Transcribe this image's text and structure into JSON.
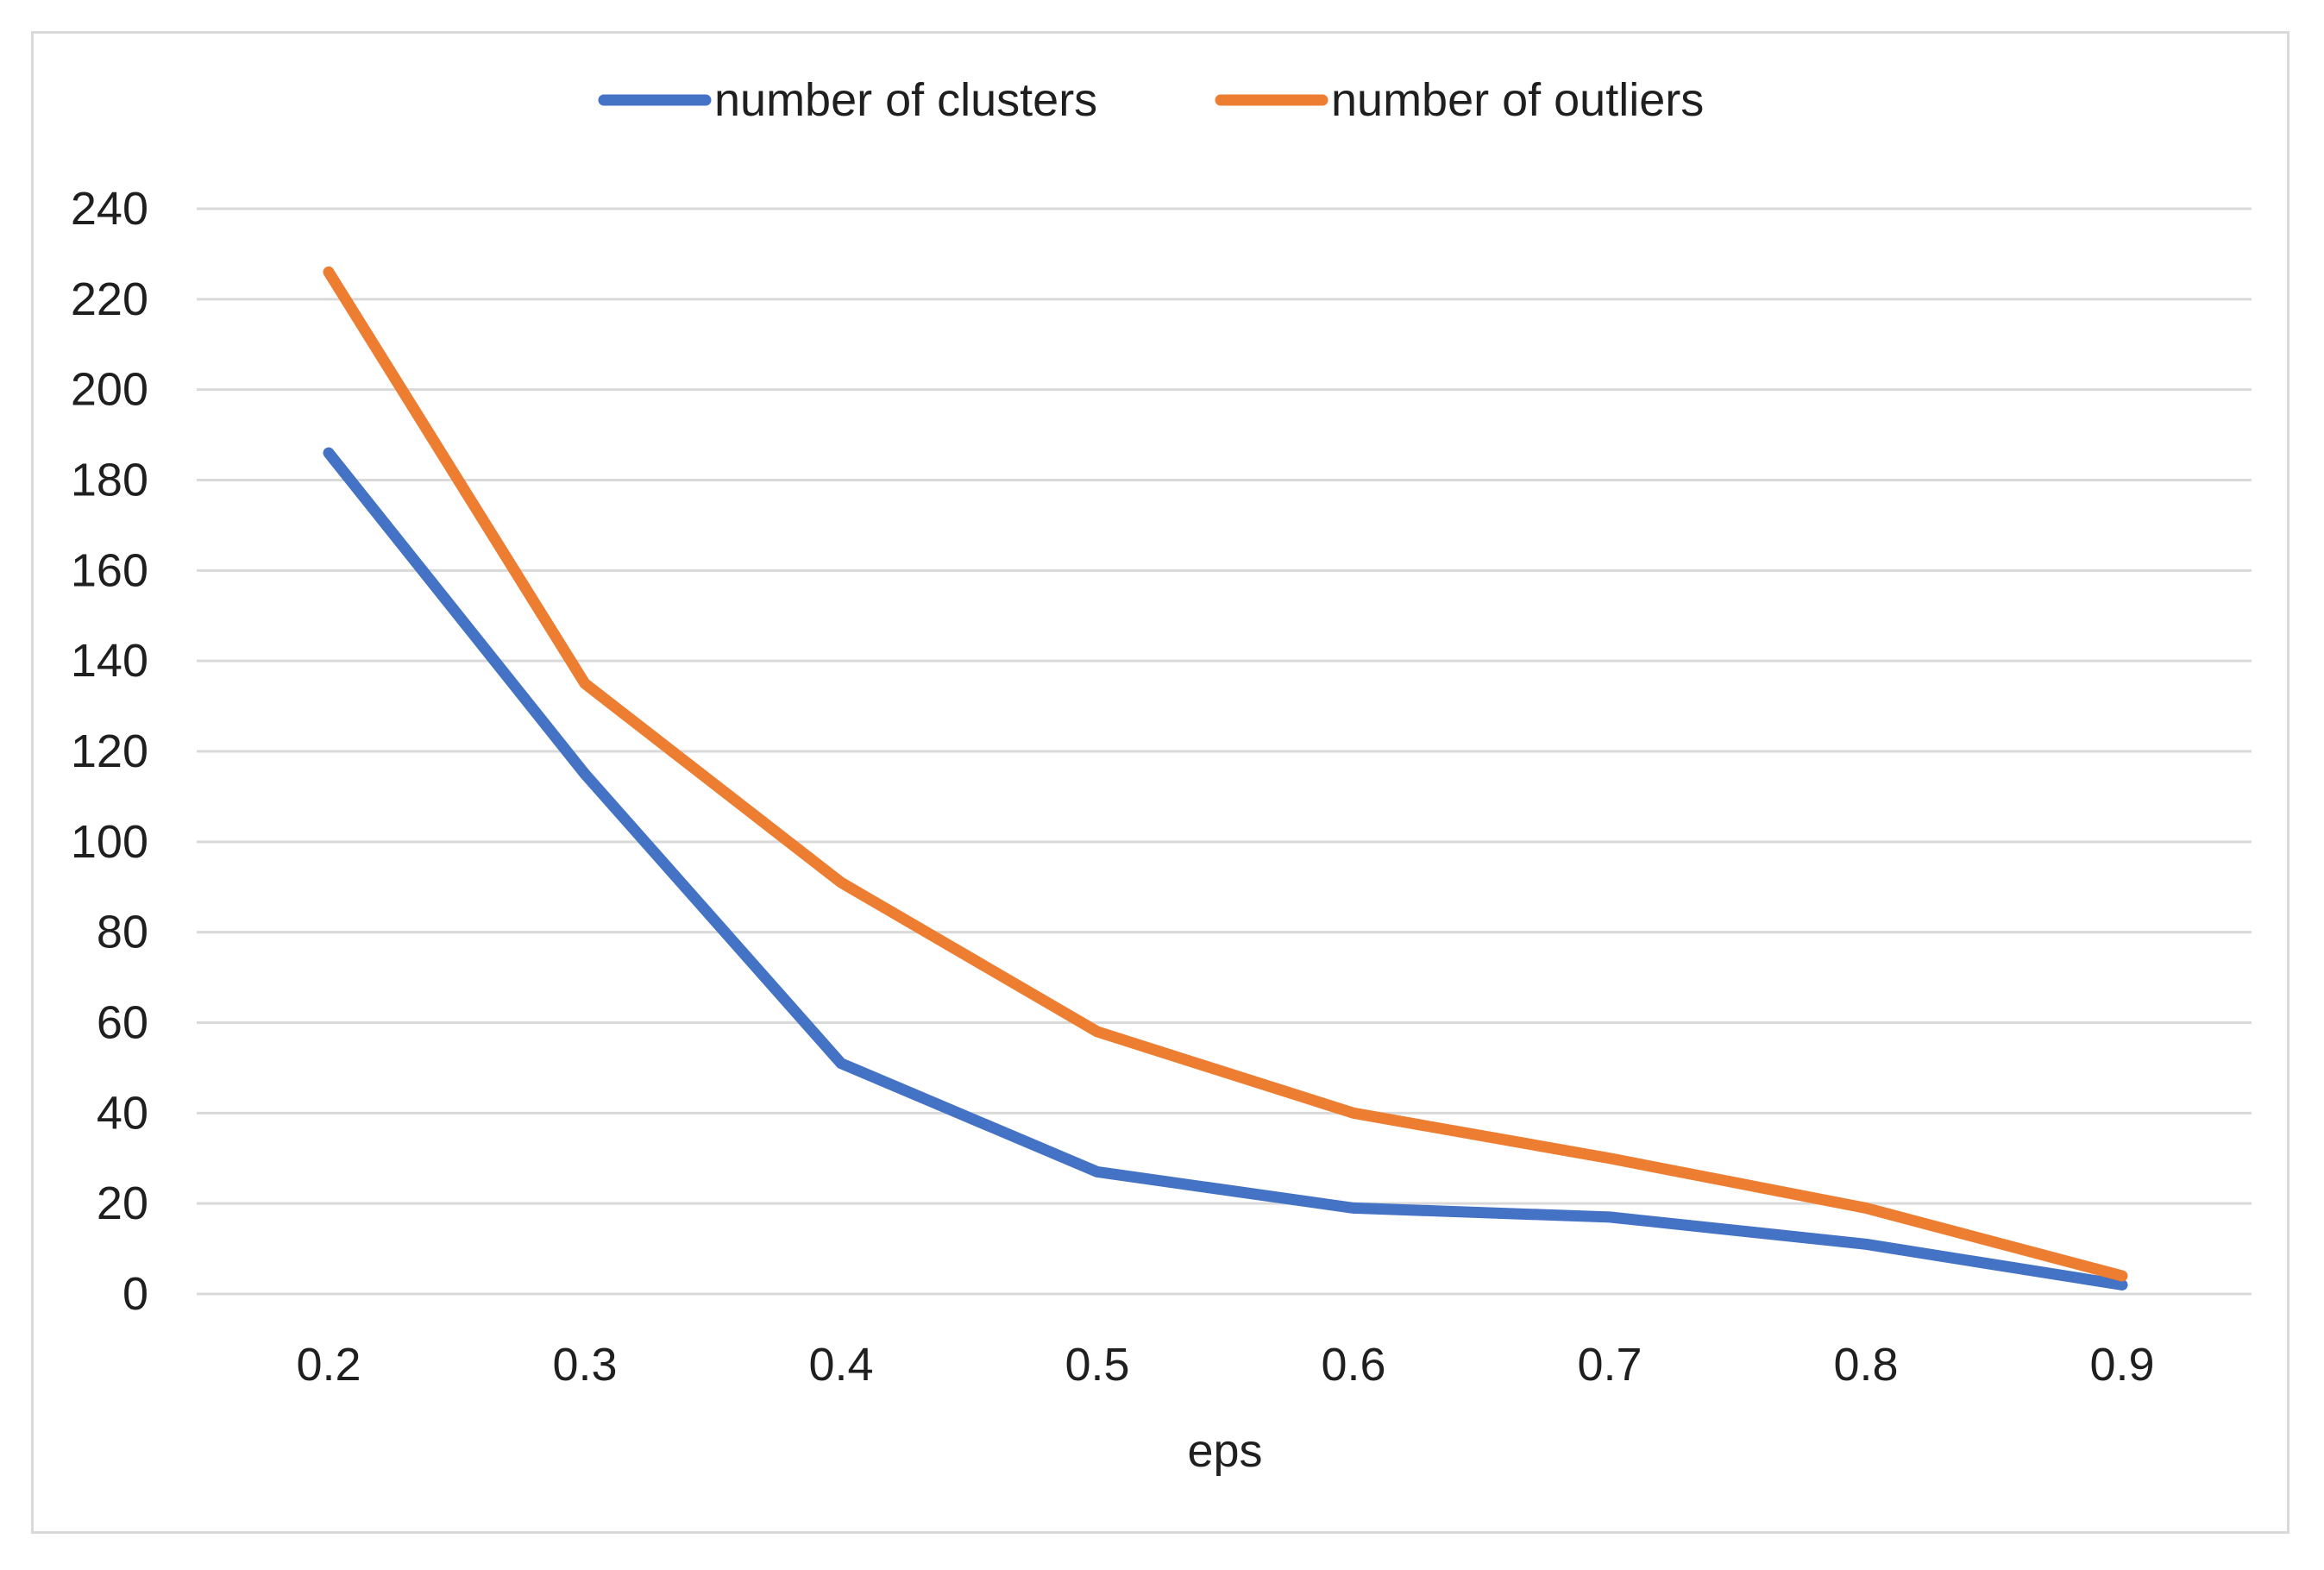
{
  "chart_data": {
    "type": "line",
    "title": "",
    "xlabel": "eps",
    "ylabel": "",
    "categories": [
      "0.2",
      "0.3",
      "0.4",
      "0.5",
      "0.6",
      "0.7",
      "0.8",
      "0.9"
    ],
    "series": [
      {
        "name": "number of clusters",
        "color": "#4472c4",
        "values": [
          186,
          115,
          51,
          27,
          19,
          17,
          11,
          2
        ]
      },
      {
        "name": "number of outliers",
        "color": "#ed7d31",
        "values": [
          226,
          135,
          91,
          58,
          40,
          30,
          19,
          4
        ]
      }
    ],
    "ylim": [
      0,
      240
    ],
    "yticks": [
      0,
      20,
      40,
      60,
      80,
      100,
      120,
      140,
      160,
      180,
      200,
      220,
      240
    ],
    "grid": true,
    "legend": "top-center",
    "gridline_color": "#d9d9d9"
  }
}
